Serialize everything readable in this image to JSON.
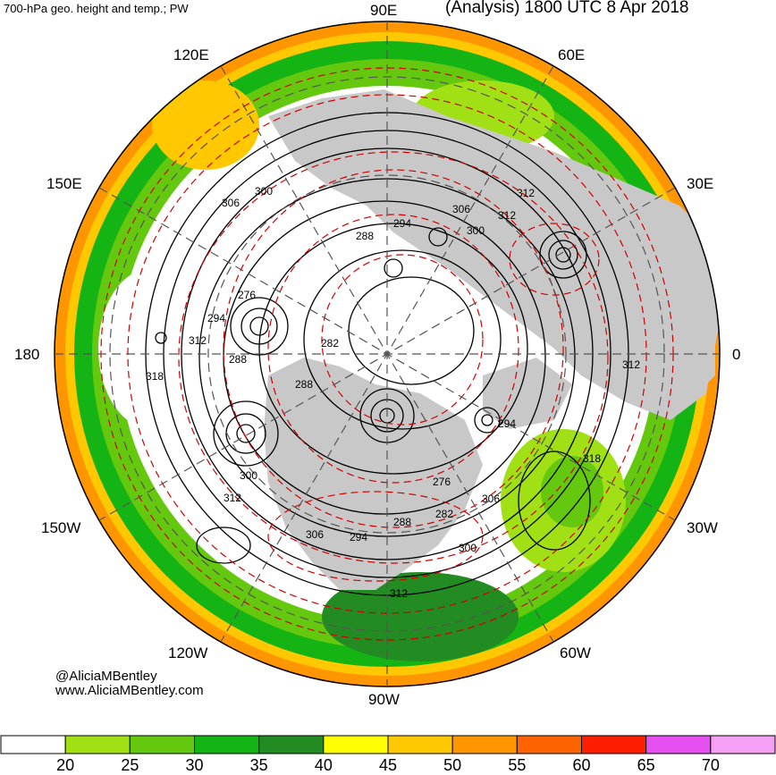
{
  "header": {
    "left_title": "700-hPa geo. height and temp.; PW",
    "right_title": "(Analysis) 1800 UTC 8 Apr 2018"
  },
  "longitude_labels": {
    "e90": "90E",
    "e60": "60E",
    "e120": "120E",
    "e150": "150E",
    "e30": "30E",
    "w180": "180",
    "zero": "0",
    "w150": "150W",
    "w30": "30W",
    "w120": "120W",
    "w60": "60W",
    "w90": "90W"
  },
  "credits": {
    "handle": "@AliciaMBentley",
    "website": "www.AliciaMBentley.com"
  },
  "contour_labels": [
    "300",
    "306",
    "294",
    "288",
    "306",
    "300",
    "312",
    "312",
    "276",
    "294",
    "312",
    "288",
    "282",
    "288",
    "318",
    "300",
    "312",
    "276",
    "282",
    "288",
    "294",
    "300",
    "306",
    "306",
    "294",
    "312",
    "318",
    "312"
  ],
  "colorbar": {
    "ticks": [
      "20",
      "25",
      "30",
      "35",
      "40",
      "45",
      "50",
      "55",
      "60",
      "65",
      "70"
    ],
    "colors": [
      "#ffffff",
      "#a0e015",
      "#64c80f",
      "#14b414",
      "#228c22",
      "#ffff00",
      "#ffc800",
      "#ff9600",
      "#ff6400",
      "#ff1e00",
      "#e650f0",
      "#f5a0f5"
    ]
  },
  "palette": {
    "land": "#c8c8c8",
    "height_contour": "#000000",
    "temp_contour": "#d20000"
  }
}
